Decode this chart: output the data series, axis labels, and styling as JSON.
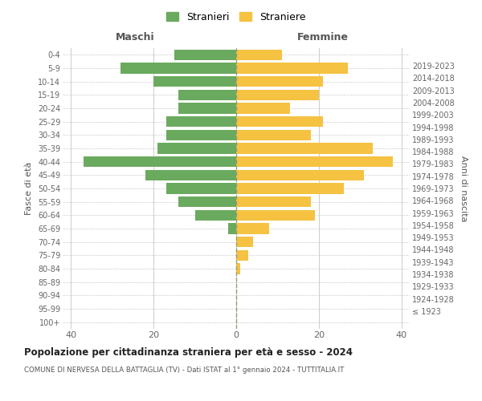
{
  "age_groups": [
    "100+",
    "95-99",
    "90-94",
    "85-89",
    "80-84",
    "75-79",
    "70-74",
    "65-69",
    "60-64",
    "55-59",
    "50-54",
    "45-49",
    "40-44",
    "35-39",
    "30-34",
    "25-29",
    "20-24",
    "15-19",
    "10-14",
    "5-9",
    "0-4"
  ],
  "birth_years": [
    "≤ 1923",
    "1924-1928",
    "1929-1933",
    "1934-1938",
    "1939-1943",
    "1944-1948",
    "1949-1953",
    "1954-1958",
    "1959-1963",
    "1964-1968",
    "1969-1973",
    "1974-1978",
    "1979-1983",
    "1984-1988",
    "1989-1993",
    "1994-1998",
    "1999-2003",
    "2004-2008",
    "2009-2013",
    "2014-2018",
    "2019-2023"
  ],
  "maschi": [
    0,
    0,
    0,
    0,
    0,
    0,
    0,
    2,
    10,
    14,
    17,
    22,
    37,
    19,
    17,
    17,
    14,
    14,
    20,
    28,
    15
  ],
  "femmine": [
    0,
    0,
    0,
    0,
    1,
    3,
    4,
    8,
    19,
    18,
    26,
    31,
    38,
    33,
    18,
    21,
    13,
    20,
    21,
    27,
    11
  ],
  "maschi_color": "#6aaa5e",
  "femmine_color": "#f5c242",
  "background_color": "#ffffff",
  "grid_color": "#cccccc",
  "title_main": "Popolazione per cittadinanza straniera per età e sesso - 2024",
  "title_sub": "COMUNE DI NERVESA DELLA BATTAGLIA (TV) - Dati ISTAT al 1° gennaio 2024 - TUTTITALIA.IT",
  "xlabel_left": "Maschi",
  "xlabel_right": "Femmine",
  "ylabel_left": "Fasce di età",
  "ylabel_right": "Anni di nascita",
  "legend_maschi": "Stranieri",
  "legend_femmine": "Straniere",
  "xlim": 42,
  "bar_height": 0.8
}
